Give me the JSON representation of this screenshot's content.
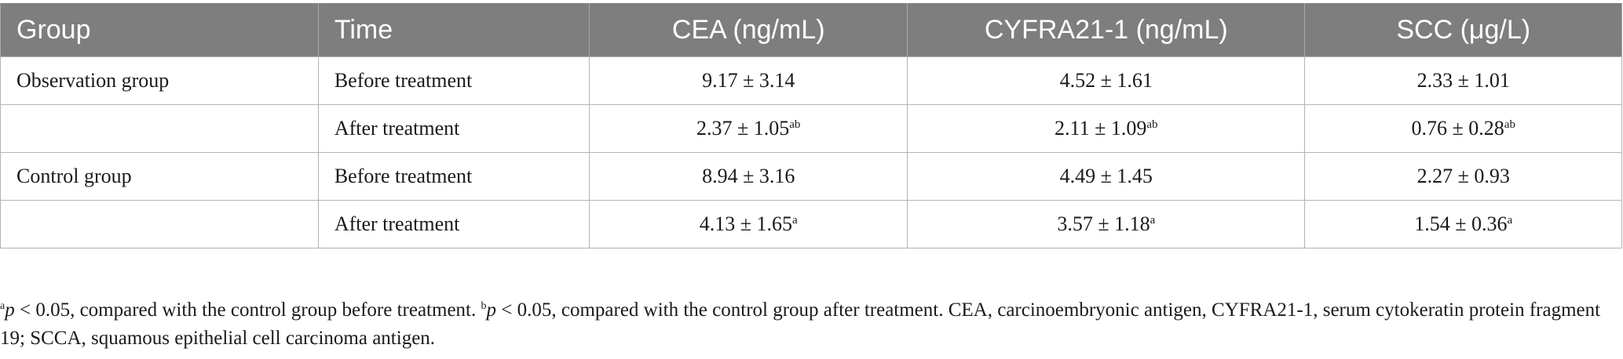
{
  "table": {
    "headers": [
      "Group",
      "Time",
      "CEA (ng/mL)",
      "CYFRA21-1 (ng/mL)",
      "SCC (μg/L)"
    ],
    "rows": [
      {
        "group": "Observation group",
        "time": "Before treatment",
        "cea": "9.17 ± 3.14",
        "cea_sup": "",
        "cyfra": "4.52 ± 1.61",
        "cyfra_sup": "",
        "scc": "2.33 ± 1.01",
        "scc_sup": ""
      },
      {
        "group": "",
        "time": "After treatment",
        "cea": "2.37 ± 1.05",
        "cea_sup": "ab",
        "cyfra": "2.11 ± 1.09",
        "cyfra_sup": "ab",
        "scc": "0.76 ± 0.28",
        "scc_sup": "ab"
      },
      {
        "group": "Control group",
        "time": "Before treatment",
        "cea": "8.94 ± 3.16",
        "cea_sup": "",
        "cyfra": "4.49 ± 1.45",
        "cyfra_sup": "",
        "scc": "2.27 ± 0.93",
        "scc_sup": ""
      },
      {
        "group": "",
        "time": "After treatment",
        "cea": "4.13 ± 1.65",
        "cea_sup": "a",
        "cyfra": "3.57 ± 1.18",
        "cyfra_sup": "a",
        "scc": "1.54 ± 0.36",
        "scc_sup": "a"
      }
    ]
  },
  "footnote": {
    "a_mark": "a",
    "a_p": "p",
    "a_text": " < 0.05, compared with the control group before treatment. ",
    "b_mark": "b",
    "b_p": "p",
    "b_text": " < 0.05, compared with the control group after treatment. CEA, carcinoembryonic antigen, CYFRA21-1, serum cytokeratin protein fragment 19; SCCA, squamous epithelial cell carcinoma antigen."
  },
  "colors": {
    "header_bg": "#7e7e7e",
    "header_text": "#ffffff",
    "border": "#b3b3b3"
  }
}
